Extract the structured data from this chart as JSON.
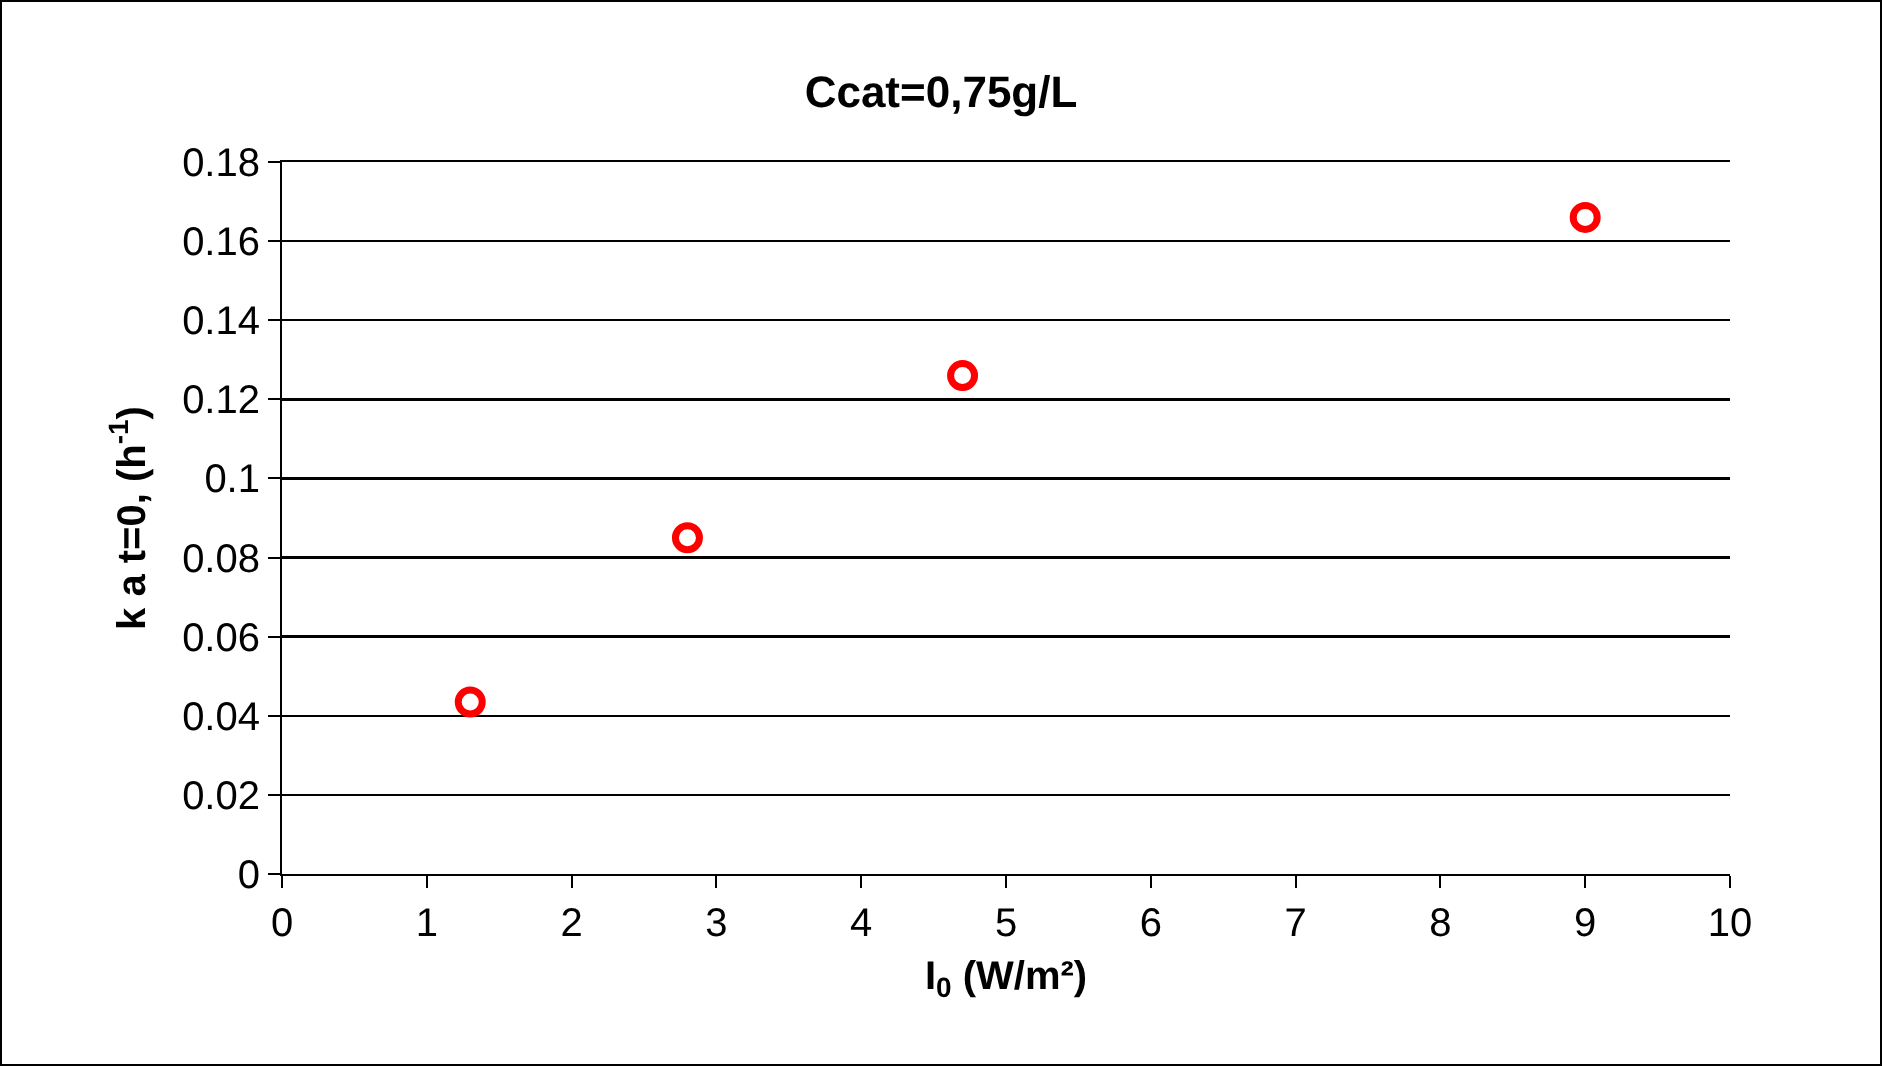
{
  "chart_data": {
    "type": "scatter",
    "title": "Ccat=0,75g/L",
    "xlabel": "I$_{0}$ (W/m²)",
    "ylabel": "k a t=0, (h$^{-1}$)",
    "x": [
      1.3,
      2.8,
      4.7,
      9.0
    ],
    "series": [
      {
        "color": "#ff0000",
        "values": [
          0.0435,
          0.085,
          0.126,
          0.166
        ]
      }
    ],
    "xlim": [
      0,
      10
    ],
    "xticks": [
      0,
      1,
      2,
      3,
      4,
      5,
      6,
      7,
      8,
      9,
      10
    ],
    "ylim": [
      0,
      0.18
    ],
    "yticks": [
      0,
      0.02,
      0.04,
      0.06,
      0.08,
      0.1,
      0.12,
      0.14,
      0.16,
      0.18
    ],
    "grid": "y",
    "marker": "circle"
  }
}
